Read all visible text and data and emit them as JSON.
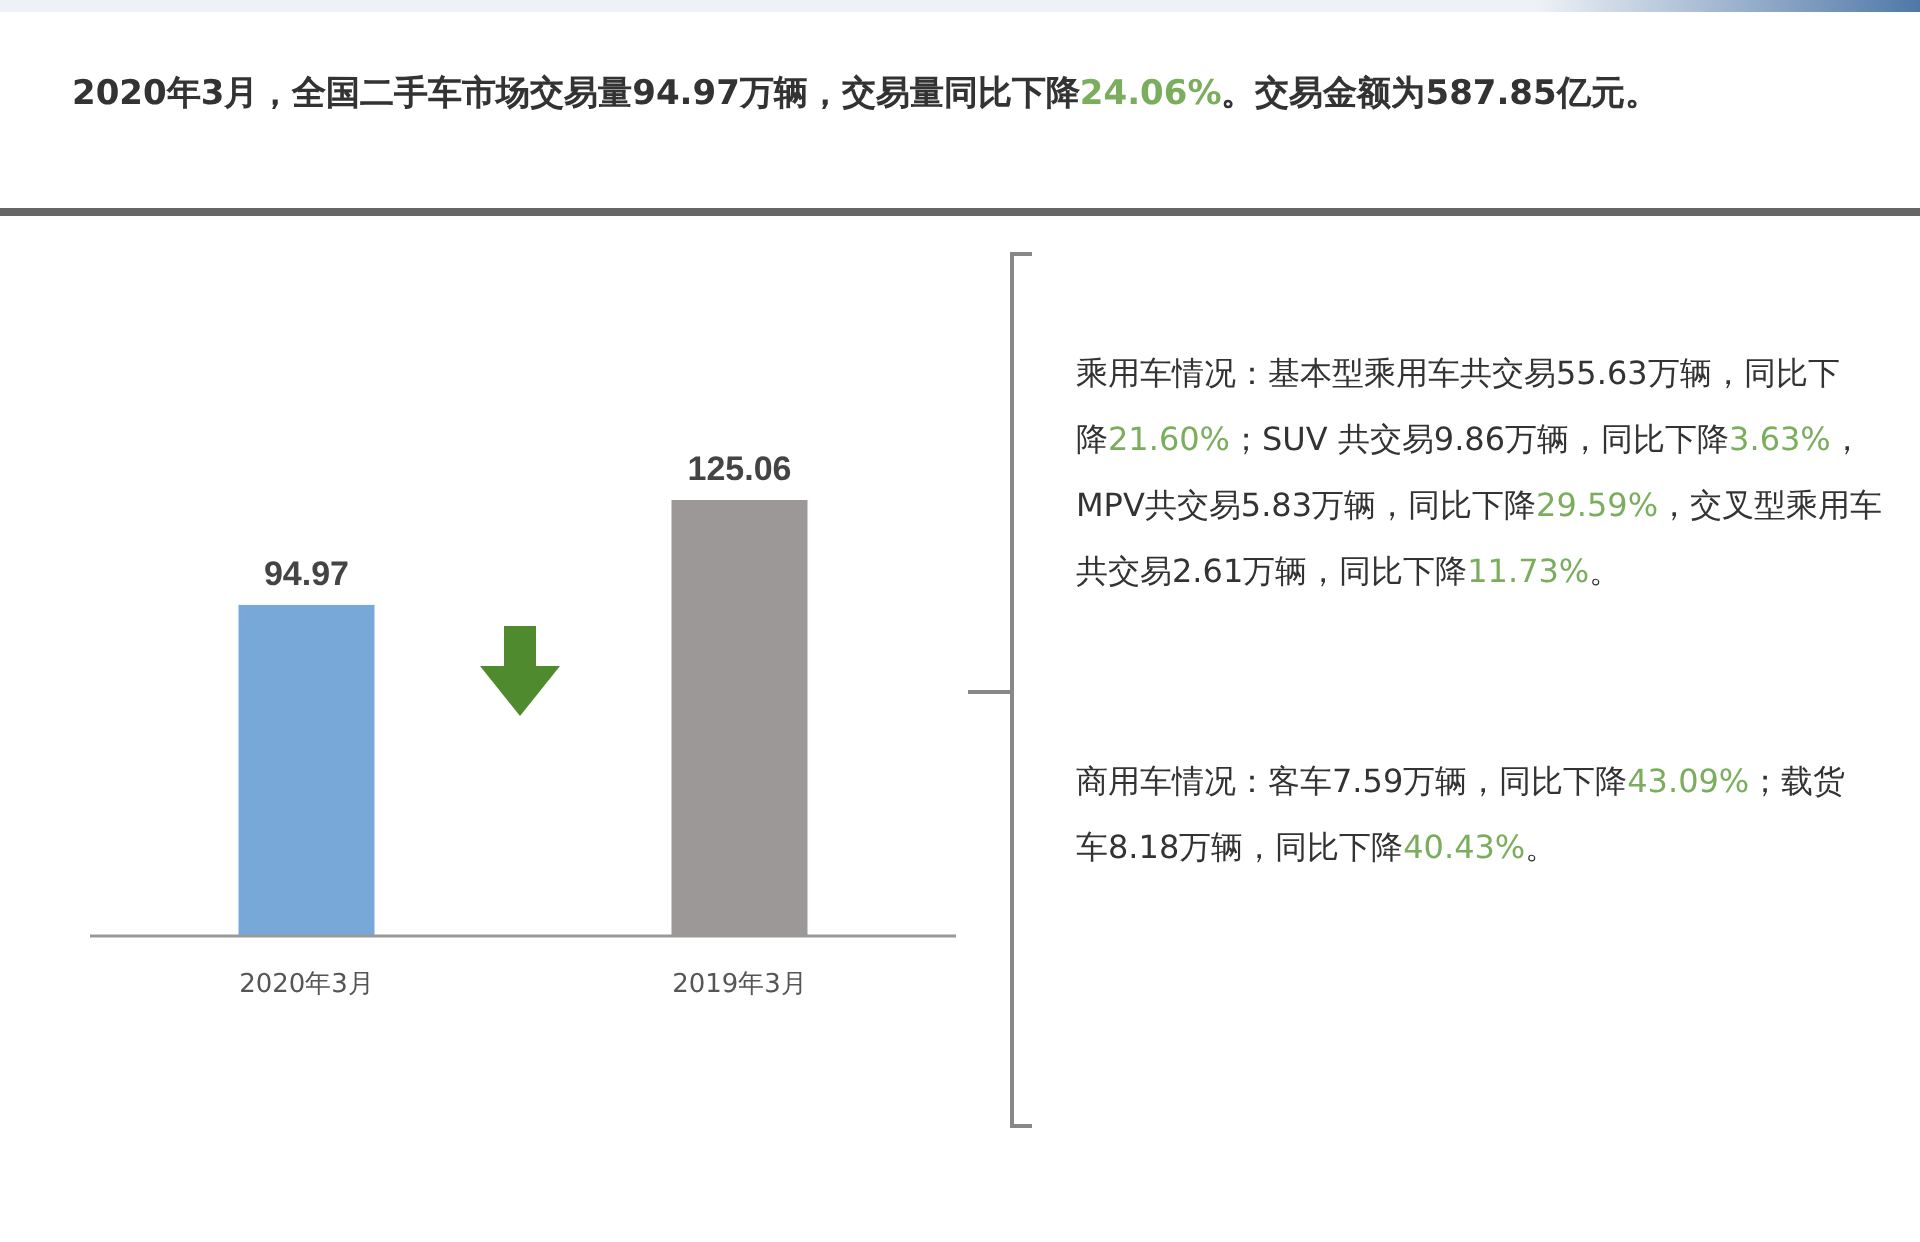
{
  "chart_data": {
    "type": "bar",
    "title": "2020年3月，全国二手车市场交易量94.97万辆，交易量同比下降24.06%。交易金额为587.85亿元。",
    "categories": [
      "2020年3月",
      "2019年3月"
    ],
    "values": [
      94.97,
      125.06
    ],
    "colors": [
      "#78a8d8",
      "#9c9897"
    ],
    "data_labels": true,
    "annotations": [
      "乘用车情况：基本型乘用车共交易55.63万辆，同比下降21.60%；SUV 共交易9.86万辆，同比下降3.63%，MPV共交易5.83万辆，同比下降29.59%，交叉型乘用车共交易2.61万辆，同比下降11.73%。",
      "商用车情况：客车7.59万辆，同比下降43.09%；载货车8.18万辆，同比下降40.43%。"
    ]
  }
}
